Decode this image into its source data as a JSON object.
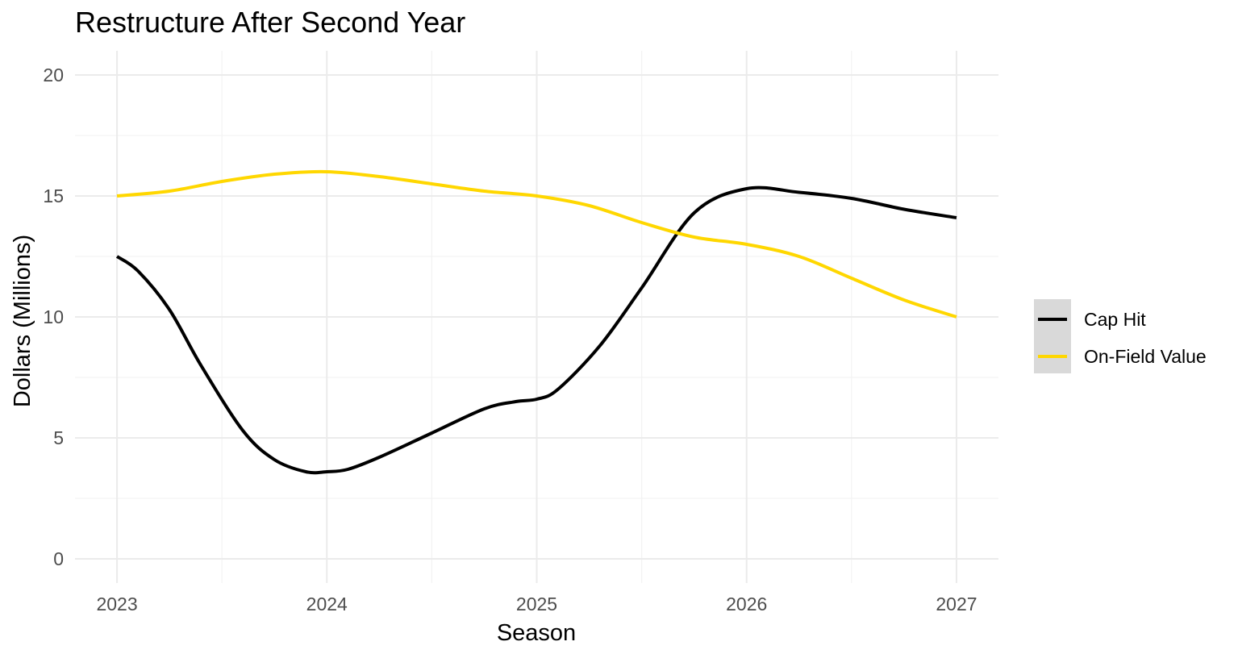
{
  "chart_data": {
    "type": "line",
    "title": "Restructure After Second Year",
    "xlabel": "Season",
    "ylabel": "Dollars (Millions)",
    "xlim": [
      2022.8,
      2027.2
    ],
    "ylim": [
      -1,
      21
    ],
    "x_ticks": [
      2023,
      2024,
      2025,
      2026,
      2027
    ],
    "y_ticks": [
      0,
      5,
      10,
      15,
      20
    ],
    "grid": true,
    "legend_position": "right",
    "series": [
      {
        "name": "Cap Hit",
        "color": "#000000",
        "x": [
          2023,
          2023.1,
          2023.25,
          2023.4,
          2023.6,
          2023.75,
          2023.9,
          2024.0,
          2024.1,
          2024.25,
          2024.5,
          2024.75,
          2024.9,
          2025.0,
          2025.1,
          2025.3,
          2025.5,
          2025.75,
          2026.0,
          2026.25,
          2026.5,
          2026.75,
          2027
        ],
        "y": [
          12.5,
          11.9,
          10.3,
          8.0,
          5.3,
          4.1,
          3.6,
          3.6,
          3.7,
          4.2,
          5.2,
          6.2,
          6.5,
          6.6,
          7.0,
          8.8,
          11.2,
          14.3,
          15.3,
          15.15,
          14.9,
          14.45,
          14.1
        ]
      },
      {
        "name": "On-Field Value",
        "color": "#FFD700",
        "x": [
          2023,
          2023.25,
          2023.5,
          2023.75,
          2024.0,
          2024.25,
          2024.5,
          2024.75,
          2025.0,
          2025.25,
          2025.5,
          2025.75,
          2026.0,
          2026.25,
          2026.5,
          2026.75,
          2027
        ],
        "y": [
          15.0,
          15.2,
          15.6,
          15.9,
          16.0,
          15.8,
          15.5,
          15.2,
          15.0,
          14.6,
          13.9,
          13.3,
          13.0,
          12.5,
          11.6,
          10.7,
          10.0
        ]
      }
    ]
  }
}
